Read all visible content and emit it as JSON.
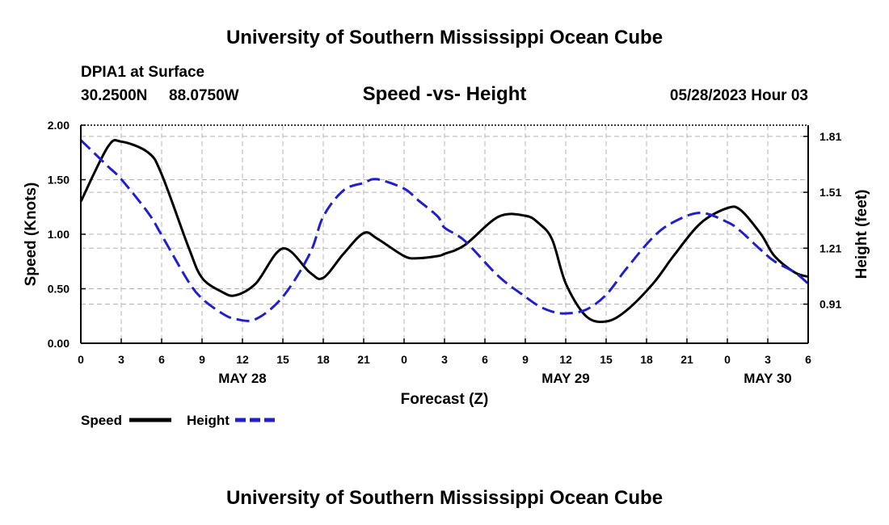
{
  "page_title": "University of Southern Mississippi Ocean Cube",
  "footer_title": "University of Southern Mississippi Ocean Cube",
  "station": {
    "name": "DPIA1 at Surface",
    "latitude": "30.2500N",
    "longitude": "88.0750W",
    "timestamp": "05/28/2023 Hour 03"
  },
  "chart_data": {
    "type": "line",
    "title": "Speed -vs- Height",
    "xlabel": "Forecast (Z)",
    "ylabel": "Speed (Knots)",
    "ylabel_right": "Height (feet)",
    "xlim": [
      0,
      54
    ],
    "ylim": [
      0,
      2.0
    ],
    "ylim_right": [
      0.7,
      1.87
    ],
    "grid": true,
    "x_ticks": [
      0,
      3,
      6,
      9,
      12,
      15,
      18,
      21,
      24,
      27,
      30,
      33,
      36,
      39,
      42,
      45,
      48,
      51,
      54
    ],
    "x_tick_labels": [
      "0",
      "3",
      "6",
      "9",
      "12",
      "15",
      "18",
      "21",
      "0",
      "3",
      "6",
      "9",
      "12",
      "15",
      "18",
      "21",
      "0",
      "3",
      "6"
    ],
    "y_ticks": [
      0,
      0.5,
      1.0,
      1.5,
      2.0
    ],
    "y_tick_labels": [
      "0.00",
      "0.50",
      "1.00",
      "1.50",
      "2.00"
    ],
    "y_ticks_right": [
      0.91,
      1.21,
      1.51,
      1.81
    ],
    "y_tick_labels_right": [
      "0.91",
      "1.21",
      "1.51",
      "1.81"
    ],
    "date_labels": [
      {
        "x": 12,
        "label": "MAY 28"
      },
      {
        "x": 36,
        "label": "MAY 29"
      },
      {
        "x": 51,
        "label": "MAY 30"
      }
    ],
    "x": [
      0,
      2,
      3,
      5,
      6,
      8,
      9,
      10.5,
      11.5,
      13,
      15,
      17,
      18,
      19.5,
      21,
      22,
      24,
      25,
      26.5,
      27,
      28.5,
      31,
      33,
      34,
      35,
      36,
      37.5,
      39,
      40.5,
      42.5,
      44,
      46,
      48,
      49,
      50.5,
      51.5,
      53,
      54
    ],
    "series": [
      {
        "name": "Speed",
        "axis": "left",
        "color": "#000000",
        "dash": "solid",
        "values": [
          1.3,
          1.8,
          1.85,
          1.75,
          1.55,
          0.88,
          0.6,
          0.47,
          0.44,
          0.55,
          0.87,
          0.65,
          0.6,
          0.82,
          1.01,
          0.96,
          0.8,
          0.78,
          0.8,
          0.82,
          0.9,
          1.16,
          1.17,
          1.1,
          0.95,
          0.55,
          0.25,
          0.2,
          0.3,
          0.55,
          0.8,
          1.1,
          1.24,
          1.22,
          1.0,
          0.8,
          0.65,
          0.61
        ]
      },
      {
        "name": "Height",
        "axis": "right",
        "color": "#1f1fcf",
        "dash": "dashed",
        "values": [
          1.79,
          1.65,
          1.58,
          1.4,
          1.28,
          1.03,
          0.94,
          0.86,
          0.83,
          0.83,
          0.95,
          1.18,
          1.38,
          1.52,
          1.56,
          1.58,
          1.53,
          1.47,
          1.38,
          1.32,
          1.25,
          1.06,
          0.95,
          0.9,
          0.87,
          0.86,
          0.88,
          0.96,
          1.1,
          1.27,
          1.35,
          1.4,
          1.35,
          1.3,
          1.2,
          1.14,
          1.08,
          1.02
        ]
      }
    ],
    "legend": [
      {
        "label": "Speed",
        "color": "#000000",
        "dash": "solid"
      },
      {
        "label": "Height",
        "color": "#1f1fcf",
        "dash": "dashed"
      }
    ]
  }
}
